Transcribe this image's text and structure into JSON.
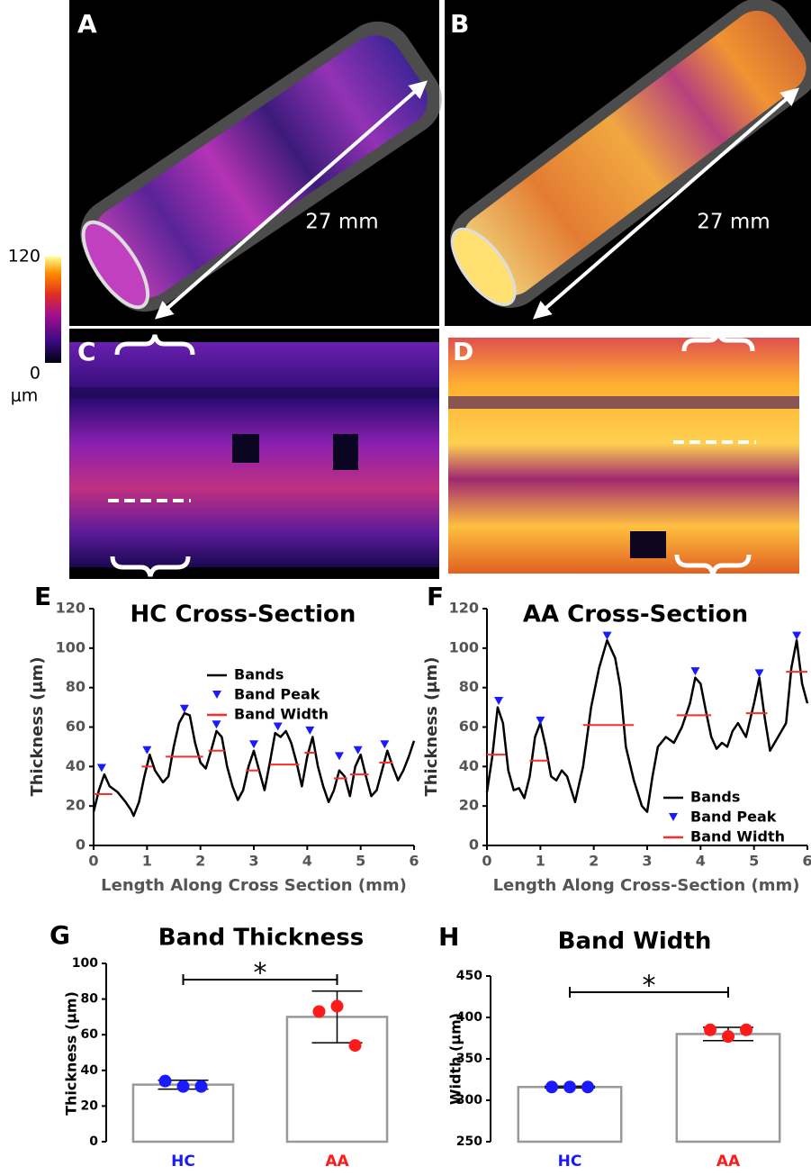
{
  "figure": {
    "panels": [
      {
        "label": "A",
        "annotation": "27 mm"
      },
      {
        "label": "B",
        "annotation": "27 mm"
      },
      {
        "label": "C"
      },
      {
        "label": "D"
      }
    ],
    "colorbar": {
      "lim": [
        0,
        120
      ],
      "ticks": [
        120,
        0
      ],
      "unit": "μm"
    }
  },
  "chart_data": [
    {
      "type": "line",
      "panel_label": "E",
      "title": "HC Cross-Section",
      "xlabel": "Length Along Cross Section (mm)",
      "ylabel": "Thickness (μm)",
      "xlim": [
        0,
        6
      ],
      "xticks": [
        0,
        1,
        2,
        3,
        4,
        5,
        6
      ],
      "ylim": [
        0,
        120
      ],
      "yticks": [
        0,
        20,
        40,
        60,
        80,
        100,
        120
      ],
      "legend": "upper right",
      "series": [
        {
          "name": "Bands",
          "color": "#000000",
          "x": [
            0,
            0.1,
            0.2,
            0.3,
            0.45,
            0.6,
            0.7,
            0.75,
            0.85,
            0.95,
            1.05,
            1.15,
            1.3,
            1.4,
            1.5,
            1.6,
            1.7,
            1.8,
            1.9,
            2.0,
            2.1,
            2.2,
            2.3,
            2.4,
            2.5,
            2.6,
            2.7,
            2.8,
            2.9,
            3.0,
            3.1,
            3.2,
            3.3,
            3.4,
            3.5,
            3.6,
            3.7,
            3.8,
            3.9,
            4.0,
            4.1,
            4.2,
            4.3,
            4.4,
            4.5,
            4.6,
            4.7,
            4.8,
            4.9,
            5.0,
            5.1,
            5.2,
            5.3,
            5.5,
            5.6,
            5.7,
            5.8,
            5.9,
            6.0
          ],
          "values": [
            17,
            28,
            36,
            30,
            27,
            22,
            18,
            15,
            22,
            35,
            46,
            38,
            32,
            35,
            50,
            62,
            67,
            66,
            52,
            42,
            39,
            48,
            58,
            55,
            40,
            30,
            23,
            28,
            40,
            48,
            38,
            28,
            42,
            57,
            55,
            58,
            52,
            42,
            30,
            45,
            55,
            40,
            30,
            22,
            28,
            38,
            35,
            25,
            40,
            46,
            35,
            25,
            28,
            48,
            40,
            33,
            38,
            45,
            53
          ]
        },
        {
          "name": "Band Peak",
          "color": "#1a1aff",
          "marker": "triangle",
          "x": [
            0.15,
            1.0,
            1.7,
            2.3,
            3.0,
            3.45,
            4.05,
            4.6,
            4.95,
            5.45
          ],
          "values": [
            39,
            48,
            69,
            61,
            51,
            60,
            58,
            45,
            48,
            51
          ]
        },
        {
          "name": "Band Width",
          "color": "#ff2a2a",
          "x_start": [
            0,
            0.9,
            1.35,
            2.15,
            2.85,
            3.3,
            3.95,
            4.5,
            4.8,
            5.35
          ],
          "x_end": [
            0.35,
            1.1,
            2.05,
            2.45,
            3.1,
            3.85,
            4.15,
            4.75,
            5.15,
            5.6
          ],
          "values": [
            26,
            40,
            45,
            48,
            38,
            41,
            47,
            34,
            36,
            42
          ]
        }
      ]
    },
    {
      "type": "line",
      "panel_label": "F",
      "title": "AA Cross-Section",
      "xlabel": "Length Along Cross-Section (mm)",
      "ylabel": "Thickness (μm)",
      "xlim": [
        0,
        6
      ],
      "xticks": [
        0,
        1,
        2,
        3,
        4,
        5,
        6
      ],
      "ylim": [
        0,
        120
      ],
      "yticks": [
        0,
        20,
        40,
        60,
        80,
        100,
        120
      ],
      "legend": "lower right",
      "series": [
        {
          "name": "Bands",
          "color": "#000000",
          "x": [
            0,
            0.1,
            0.2,
            0.3,
            0.4,
            0.5,
            0.6,
            0.7,
            0.8,
            0.9,
            1.0,
            1.1,
            1.2,
            1.3,
            1.4,
            1.5,
            1.65,
            1.8,
            1.95,
            2.1,
            2.25,
            2.4,
            2.5,
            2.6,
            2.75,
            2.9,
            3.0,
            3.1,
            3.2,
            3.35,
            3.5,
            3.65,
            3.8,
            3.9,
            4.0,
            4.1,
            4.2,
            4.3,
            4.4,
            4.5,
            4.6,
            4.7,
            4.85,
            5.0,
            5.1,
            5.2,
            5.3,
            5.45,
            5.6,
            5.7,
            5.8,
            5.9,
            6.0
          ],
          "values": [
            27,
            45,
            70,
            62,
            38,
            28,
            29,
            24,
            35,
            55,
            62,
            50,
            35,
            33,
            38,
            35,
            22,
            40,
            70,
            90,
            104,
            95,
            80,
            50,
            33,
            20,
            17,
            35,
            50,
            55,
            52,
            60,
            72,
            85,
            82,
            68,
            55,
            49,
            52,
            50,
            58,
            62,
            55,
            72,
            85,
            65,
            48,
            55,
            62,
            90,
            104,
            82,
            72
          ]
        },
        {
          "name": "Band Peak",
          "color": "#1a1aff",
          "marker": "triangle",
          "x": [
            0.22,
            1.0,
            2.25,
            3.9,
            5.1,
            5.8
          ],
          "values": [
            73,
            63,
            106,
            88,
            87,
            106
          ]
        },
        {
          "name": "Band Width",
          "color": "#ff2a2a",
          "x_start": [
            0,
            0.8,
            1.8,
            3.55,
            4.85,
            5.6
          ],
          "x_end": [
            0.35,
            1.15,
            2.75,
            4.2,
            5.25,
            6.0
          ],
          "values": [
            46,
            43,
            61,
            66,
            67,
            88
          ]
        }
      ]
    },
    {
      "type": "bar",
      "panel_label": "G",
      "title": "Band Thickness",
      "ylabel": "Thickness (μm)",
      "categories": [
        "HC",
        "AA"
      ],
      "category_colors": [
        "#1a1aff",
        "#ff1a1a"
      ],
      "values": [
        32,
        70
      ],
      "errors": [
        2.5,
        14.5
      ],
      "points": [
        [
          34,
          31,
          31
        ],
        [
          73,
          76,
          54
        ]
      ],
      "bar_color": "#ffffff",
      "edge_color": "#999999",
      "ylim": [
        0,
        100
      ],
      "yticks": [
        0,
        20,
        40,
        60,
        80,
        100
      ],
      "significance": "*"
    },
    {
      "type": "bar",
      "panel_label": "H",
      "title": "Band Width",
      "ylabel": "Width (μm)",
      "categories": [
        "HC",
        "AA"
      ],
      "category_colors": [
        "#1a1aff",
        "#ff1a1a"
      ],
      "values": [
        316,
        380
      ],
      "errors": [
        1,
        8
      ],
      "points": [
        [
          316,
          316,
          316
        ],
        [
          385,
          377,
          385
        ]
      ],
      "bar_color": "#ffffff",
      "edge_color": "#999999",
      "ylim": [
        250,
        450
      ],
      "yticks": [
        250,
        300,
        350,
        400,
        450
      ],
      "significance": "*"
    }
  ]
}
